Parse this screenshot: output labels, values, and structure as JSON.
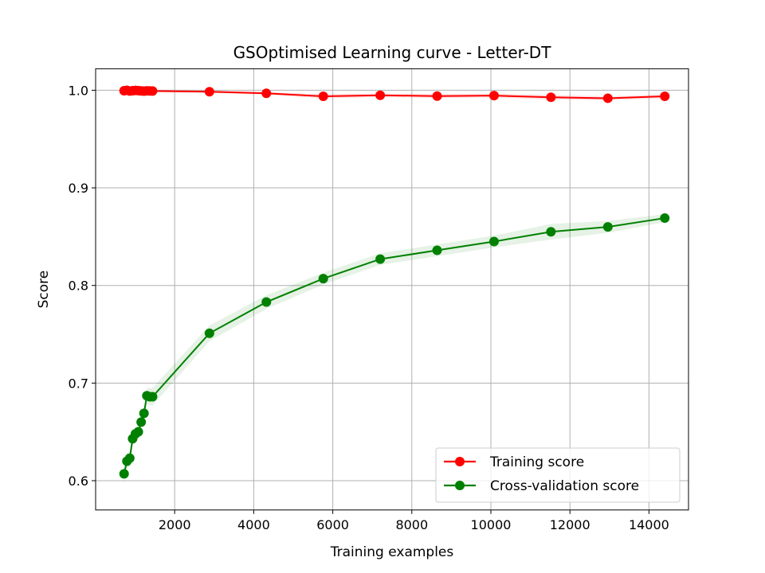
{
  "chart_data": {
    "type": "line",
    "title": "GSOptimised Learning curve - Letter-DT",
    "xlabel": "Training examples",
    "ylabel": "Score",
    "xlim": [
      0,
      15000
    ],
    "ylim": [
      0.57,
      1.022
    ],
    "xticks": [
      2000,
      4000,
      6000,
      8000,
      10000,
      12000,
      14000
    ],
    "yticks": [
      0.6,
      0.7,
      0.8,
      0.9,
      1.0
    ],
    "xtick_labels": [
      "2000",
      "4000",
      "6000",
      "8000",
      "10000",
      "12000",
      "14000"
    ],
    "ytick_labels": [
      "0.6",
      "0.7",
      "0.8",
      "0.9",
      "1.0"
    ],
    "grid": true,
    "legend_position": "lower-right",
    "x": [
      720,
      792,
      864,
      936,
      1008,
      1080,
      1152,
      1224,
      1296,
      1368,
      1440,
      2880,
      4320,
      5760,
      7200,
      8640,
      10080,
      11520,
      12960,
      14400
    ],
    "series": [
      {
        "name": "Training score",
        "color": "#ff0000",
        "fill_color": "#ff0000",
        "values": [
          0.9995,
          0.9999,
          0.9992,
          0.9995,
          0.9998,
          0.9996,
          0.9993,
          0.9991,
          0.9994,
          0.9993,
          0.9992,
          0.9985,
          0.9968,
          0.9938,
          0.9948,
          0.994,
          0.9945,
          0.9928,
          0.9918,
          0.9938
        ],
        "band": [
          0.002,
          0.001,
          0.0015,
          0.0012,
          0.001,
          0.001,
          0.0012,
          0.0012,
          0.001,
          0.001,
          0.001,
          0.0012,
          0.0015,
          0.002,
          0.002,
          0.002,
          0.002,
          0.0025,
          0.002,
          0.002
        ]
      },
      {
        "name": "Cross-validation score",
        "color": "#008000",
        "fill_color": "#008000",
        "values": [
          0.607,
          0.62,
          0.623,
          0.643,
          0.648,
          0.65,
          0.66,
          0.669,
          0.687,
          0.686,
          0.686,
          0.751,
          0.783,
          0.807,
          0.827,
          0.836,
          0.845,
          0.855,
          0.86,
          0.869
        ],
        "band": [
          0.01,
          0.008,
          0.008,
          0.007,
          0.007,
          0.007,
          0.007,
          0.007,
          0.008,
          0.009,
          0.009,
          0.008,
          0.007,
          0.006,
          0.006,
          0.006,
          0.006,
          0.008,
          0.006,
          0.004
        ]
      }
    ]
  }
}
